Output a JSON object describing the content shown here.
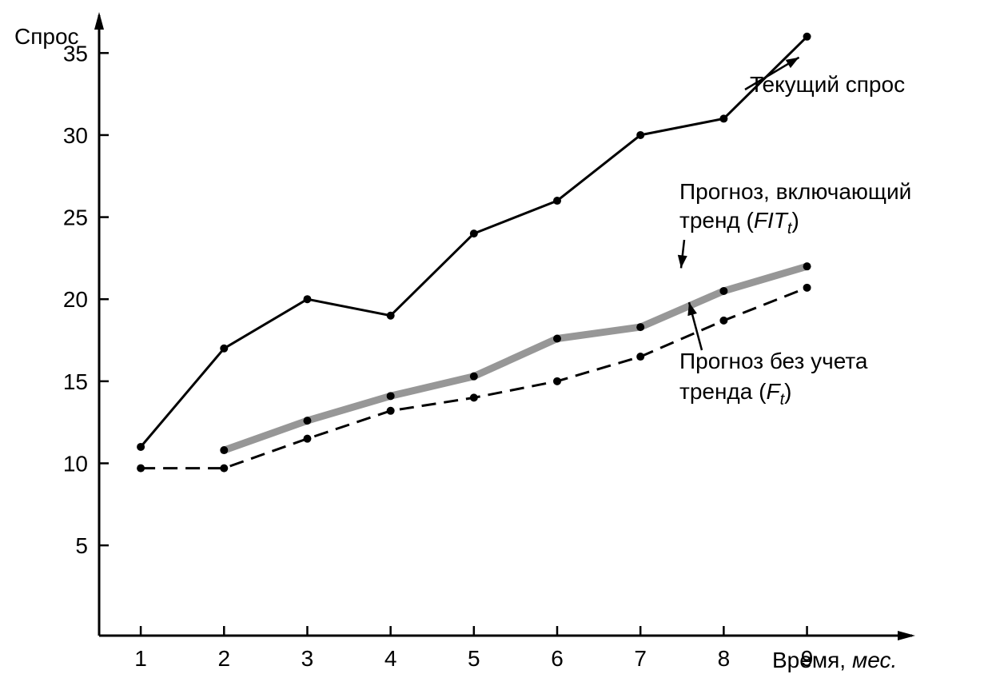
{
  "chart_data": {
    "type": "line",
    "x": [
      1,
      2,
      3,
      4,
      5,
      6,
      7,
      8,
      9
    ],
    "ylabel": "Спрос",
    "xlabel_main": "Время,",
    "xlabel_unit": "мес.",
    "xlim": [
      0.5,
      10.3
    ],
    "ylim": [
      -0.5,
      37.5
    ],
    "xticks": [
      1,
      2,
      3,
      4,
      5,
      6,
      7,
      8,
      9
    ],
    "yticks": [
      5,
      10,
      15,
      20,
      25,
      30,
      35
    ],
    "grid": false,
    "series": [
      {
        "key": "actual",
        "name": "Текущий спрос",
        "x": [
          1,
          2,
          3,
          4,
          5,
          6,
          7,
          8,
          9
        ],
        "values": [
          11,
          17,
          20,
          19,
          24,
          26,
          30,
          31,
          36
        ],
        "style": "solid",
        "color": "#000000"
      },
      {
        "key": "fit",
        "name_line1": "Прогноз, включающий",
        "name_line2_prefix": "тренд (",
        "name_symbol": "FIT",
        "name_sub": "t",
        "name_suffix": ")",
        "x": [
          2,
          3,
          4,
          5,
          6,
          7,
          8,
          9
        ],
        "values": [
          10.8,
          12.6,
          14.1,
          15.3,
          17.6,
          18.3,
          20.5,
          22.0
        ],
        "style": "thick-gray",
        "color": "#8c8c8c"
      },
      {
        "key": "forecast",
        "name_line1": "Прогноз без учета",
        "name_line2_prefix": "тренда (",
        "name_symbol": "F",
        "name_sub": "t",
        "name_suffix": ")",
        "x": [
          1,
          2,
          3,
          4,
          5,
          6,
          7,
          8,
          9
        ],
        "values": [
          9.7,
          9.7,
          11.5,
          13.2,
          14.0,
          15.0,
          16.5,
          18.7,
          20.7
        ],
        "style": "dashed",
        "color": "#000000"
      }
    ]
  }
}
